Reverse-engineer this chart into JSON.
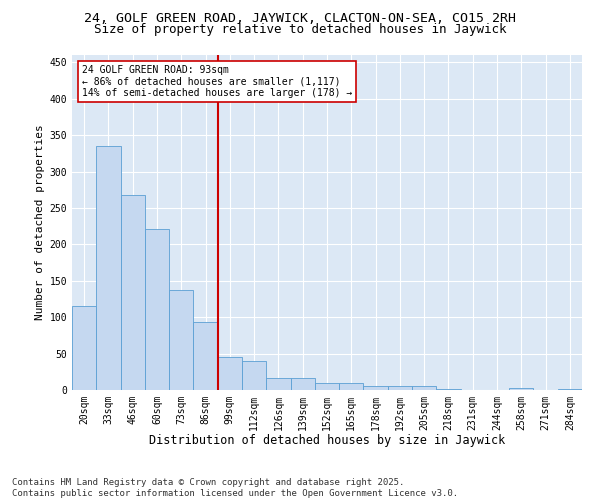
{
  "title1": "24, GOLF GREEN ROAD, JAYWICK, CLACTON-ON-SEA, CO15 2RH",
  "title2": "Size of property relative to detached houses in Jaywick",
  "xlabel": "Distribution of detached houses by size in Jaywick",
  "ylabel": "Number of detached properties",
  "categories": [
    "20sqm",
    "33sqm",
    "46sqm",
    "60sqm",
    "73sqm",
    "86sqm",
    "99sqm",
    "112sqm",
    "126sqm",
    "139sqm",
    "152sqm",
    "165sqm",
    "178sqm",
    "192sqm",
    "205sqm",
    "218sqm",
    "231sqm",
    "244sqm",
    "258sqm",
    "271sqm",
    "284sqm"
  ],
  "values": [
    115,
    335,
    268,
    221,
    138,
    93,
    45,
    40,
    17,
    17,
    10,
    10,
    6,
    5,
    6,
    2,
    0,
    0,
    3,
    0,
    2
  ],
  "bar_color": "#c5d8f0",
  "bar_edge_color": "#5a9fd4",
  "vline_x": 5.5,
  "vline_color": "#cc0000",
  "annotation_text": "24 GOLF GREEN ROAD: 93sqm\n← 86% of detached houses are smaller (1,117)\n14% of semi-detached houses are larger (178) →",
  "annotation_box_color": "#ffffff",
  "annotation_box_edge": "#cc0000",
  "ylim": [
    0,
    460
  ],
  "yticks": [
    0,
    50,
    100,
    150,
    200,
    250,
    300,
    350,
    400,
    450
  ],
  "footer": "Contains HM Land Registry data © Crown copyright and database right 2025.\nContains public sector information licensed under the Open Government Licence v3.0.",
  "bg_color": "#dce8f5",
  "title1_fontsize": 9.5,
  "title2_fontsize": 9,
  "xlabel_fontsize": 8.5,
  "ylabel_fontsize": 8,
  "tick_fontsize": 7,
  "annot_fontsize": 7,
  "footer_fontsize": 6.5
}
